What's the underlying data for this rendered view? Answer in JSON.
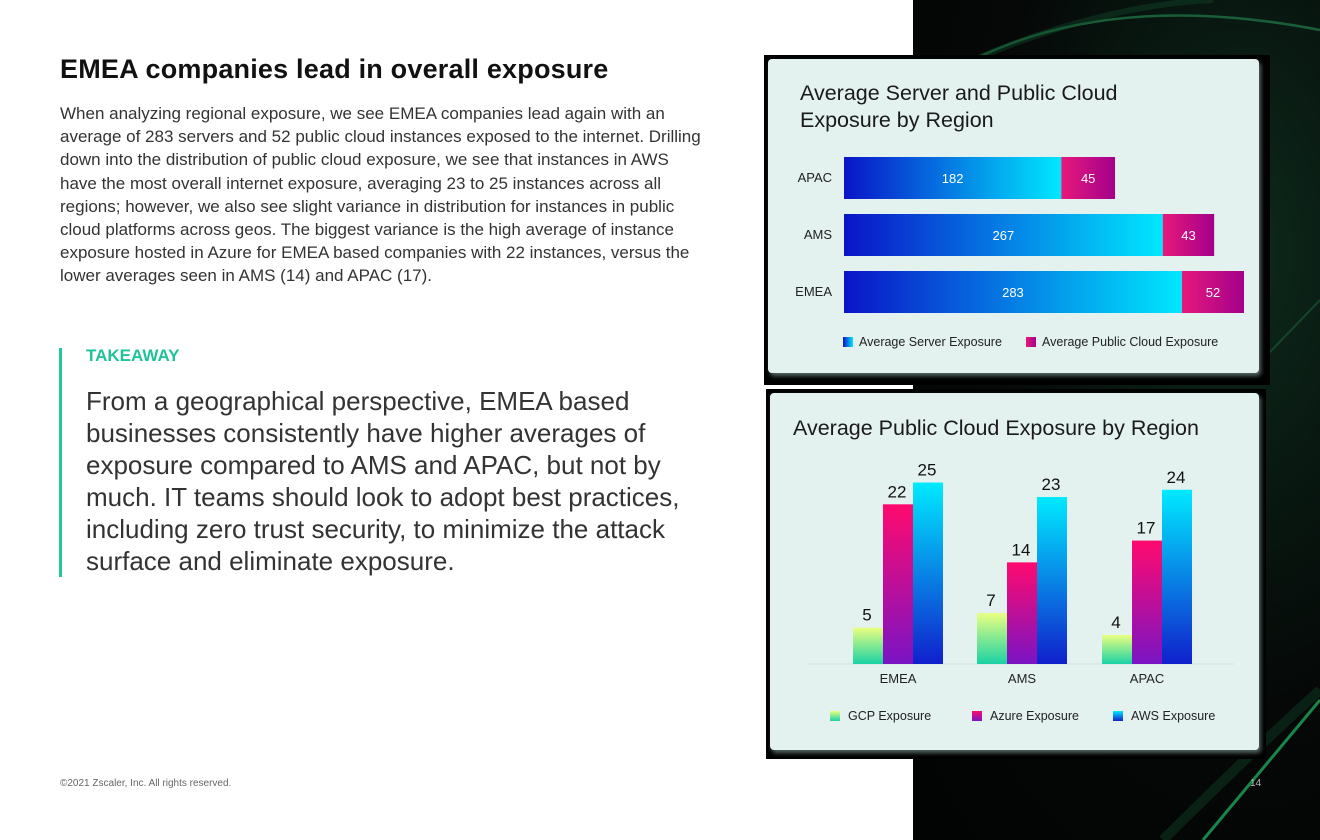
{
  "page": {
    "heading": "EMEA companies lead in overall exposure",
    "body": "When analyzing regional exposure, we see EMEA companies lead again with an average of 283 servers and 52 public cloud instances exposed to the internet. Drilling down into the distribution of public cloud exposure, we see that instances in AWS have the most overall internet exposure, averaging 23 to 25 instances across all regions; however, we also see slight variance in distribution for instances in public cloud platforms across geos. The biggest variance is the high average of instance exposure hosted in Azure for EMEA based companies with 22 instances, versus the lower averages seen in AMS (14) and APAC (17).",
    "takeaway_label": "TAKEAWAY",
    "takeaway_text": "From a geographical perspective, EMEA based businesses consistently have higher averages of exposure compared to AMS and APAC, but not by much. IT teams should look to adopt best practices, including zero trust security, to minimize the attack surface and eliminate exposure.",
    "footer_left": "©2021 Zscaler, Inc. All rights reserved.",
    "page_number": "14"
  },
  "colors": {
    "accent": "#1fc39b",
    "server_start": "#0a14c8",
    "server_end": "#00e8ff",
    "cloud_start": "#e6197a",
    "cloud_end": "#a4008c",
    "gcp_start": "#1ad2a5",
    "gcp_end": "#eaff80",
    "azure_start": "#7a14c4",
    "azure_end": "#ff0a6e",
    "aws_start": "#1020cc",
    "aws_end": "#00eaff"
  },
  "chart_data": [
    {
      "type": "bar",
      "orientation": "horizontal",
      "stacked": true,
      "title": "Average Server and Public Cloud Exposure by Region",
      "title_lines": [
        "Average Server and Public Cloud",
        "Exposure by Region"
      ],
      "categories": [
        "APAC",
        "AMS",
        "EMEA"
      ],
      "series": [
        {
          "name": "Average Server Exposure",
          "values": [
            182,
            267,
            283
          ]
        },
        {
          "name": "Average Public Cloud Exposure",
          "values": [
            45,
            43,
            52
          ]
        }
      ],
      "xlim": [
        0,
        335
      ],
      "legend": "bottom",
      "grid": false
    },
    {
      "type": "bar",
      "orientation": "vertical",
      "title": "Average Public Cloud Exposure by Region",
      "categories": [
        "EMEA",
        "AMS",
        "APAC"
      ],
      "series": [
        {
          "name": "GCP Exposure",
          "values": [
            5,
            7,
            4
          ]
        },
        {
          "name": "Azure Exposure",
          "values": [
            22,
            14,
            17
          ]
        },
        {
          "name": "AWS Exposure",
          "values": [
            25,
            23,
            24
          ]
        }
      ],
      "ylim": [
        0,
        27
      ],
      "legend": "bottom",
      "grid": false
    }
  ]
}
